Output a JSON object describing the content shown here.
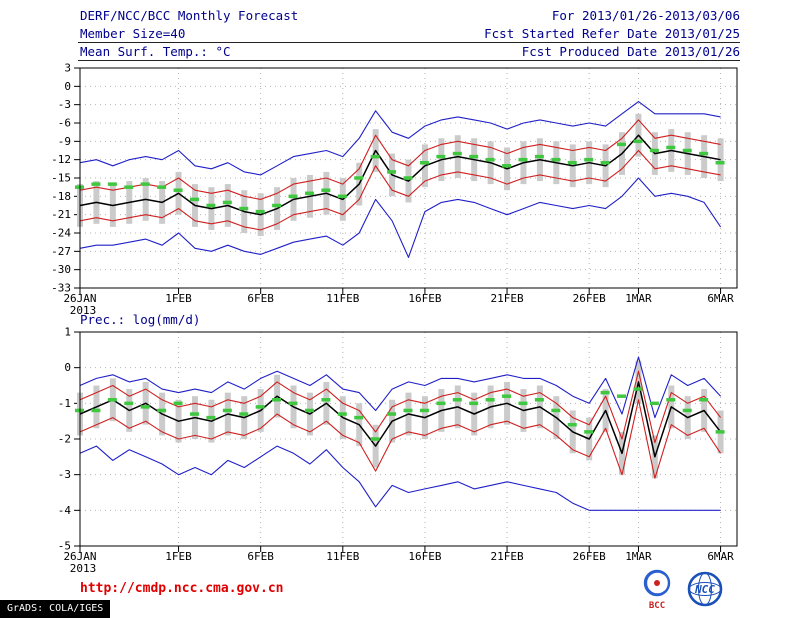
{
  "header": {
    "title": "DERF/NCC/BCC Monthly Forecast",
    "date_range": "For 2013/01/26-2013/03/06",
    "member_size": "Member Size=40",
    "refer_date": "Fcst Started Refer Date 2013/01/25",
    "produced_date": "Fcst Produced Date 2013/01/26"
  },
  "footer": {
    "url": "http://cmdp.ncc.cma.gov.cn",
    "credit": "GrADS: COLA/IGES",
    "logos": [
      {
        "name": "bcc-logo",
        "label": "BCC",
        "color": "#2b5fd0",
        "accent": "#cc2222"
      },
      {
        "name": "ncc-logo",
        "label": "NCC",
        "color": "#1a50b8"
      }
    ]
  },
  "chart_data": [
    {
      "type": "line",
      "title": "Mean Surf. Temp.: °C",
      "ylabel": "",
      "xlabel": "",
      "ylim": [
        -33,
        3
      ],
      "yticks": [
        3,
        0,
        -3,
        -6,
        -9,
        -12,
        -15,
        -18,
        -21,
        -24,
        -27,
        -30,
        -33
      ],
      "x_start_date": "2013-01-26",
      "x_count": 40,
      "grid": "dotted",
      "legend_position": "none",
      "xticks": [
        {
          "pos": 0,
          "label": "26JAN",
          "sub": "2013"
        },
        {
          "pos": 6,
          "label": "1FEB"
        },
        {
          "pos": 11,
          "label": "6FEB"
        },
        {
          "pos": 16,
          "label": "11FEB"
        },
        {
          "pos": 21,
          "label": "16FEB"
        },
        {
          "pos": 26,
          "label": "21FEB"
        },
        {
          "pos": 31,
          "label": "26FEB"
        },
        {
          "pos": 34,
          "label": "1MAR"
        },
        {
          "pos": 39,
          "label": "6MAR"
        }
      ],
      "bars": {
        "name": "ensemble-spread-bar",
        "color": "#cbcbcb",
        "hi": [
          -16,
          -15.5,
          -16,
          -15.5,
          -15,
          -15.5,
          -14,
          -16,
          -16.5,
          -16,
          -17,
          -17.5,
          -16.5,
          -15,
          -14.5,
          -14,
          -15,
          -12.5,
          -7,
          -11,
          -12,
          -9.5,
          -8.5,
          -8,
          -8.5,
          -9,
          -10,
          -9,
          -8.5,
          -9,
          -9.5,
          -9,
          -9.5,
          -7.5,
          -4.5,
          -7.5,
          -7,
          -7.5,
          -8,
          -8.5
        ],
        "lo": [
          -23,
          -22.5,
          -23,
          -22.5,
          -22,
          -22.5,
          -21,
          -23,
          -23.5,
          -23,
          -24,
          -24.5,
          -23.5,
          -22,
          -21.5,
          -21,
          -22,
          -19.5,
          -14,
          -18,
          -19,
          -16.5,
          -15.5,
          -15,
          -15.5,
          -16,
          -17,
          -16,
          -15.5,
          -16,
          -16.5,
          -16,
          -16.5,
          -14.5,
          -11.5,
          -14.5,
          -14,
          -14.5,
          -15,
          -15.5
        ]
      },
      "series": [
        {
          "name": "ensemble-max",
          "color": "#2020c8",
          "values": [
            -12.5,
            -12,
            -13,
            -12,
            -11.5,
            -12,
            -10.5,
            -13,
            -13.5,
            -12.5,
            -14,
            -14.5,
            -13,
            -11.5,
            -11,
            -10.5,
            -11.5,
            -8.5,
            -4,
            -7.5,
            -8.5,
            -6.5,
            -5.5,
            -5,
            -5.5,
            -6,
            -7,
            -6,
            -5.5,
            -6,
            -6.5,
            -6,
            -6.5,
            -4.5,
            -2.5,
            -4.5,
            -4.5,
            -4.5,
            -4.5,
            -5
          ]
        },
        {
          "name": "upper-quartile",
          "color": "#d02020",
          "values": [
            -17,
            -16.5,
            -17,
            -16.5,
            -16,
            -16.5,
            -15,
            -17,
            -17.5,
            -17,
            -18,
            -18.5,
            -17.5,
            -16,
            -15.5,
            -15,
            -16,
            -13.5,
            -8,
            -12,
            -13,
            -10.5,
            -9.5,
            -9,
            -9.5,
            -10,
            -11,
            -10,
            -9.5,
            -10,
            -10.5,
            -10,
            -10.5,
            -8.5,
            -5.5,
            -8.5,
            -8,
            -8.5,
            -9,
            -9.5
          ]
        },
        {
          "name": "ensemble-mean",
          "color": "#000000",
          "values": [
            -19.5,
            -19,
            -19.5,
            -19,
            -18.5,
            -19,
            -17.5,
            -19.5,
            -20,
            -19.5,
            -20.5,
            -21,
            -20,
            -18.5,
            -18,
            -17.5,
            -18.5,
            -16,
            -10.5,
            -14.5,
            -15.5,
            -13,
            -12,
            -11.5,
            -12,
            -12.5,
            -13.5,
            -12.5,
            -12,
            -12.5,
            -13,
            -12.5,
            -13,
            -11,
            -8,
            -11,
            -10.5,
            -11,
            -11.5,
            -12
          ]
        },
        {
          "name": "lower-quartile",
          "color": "#d02020",
          "values": [
            -22,
            -21.5,
            -22,
            -21.5,
            -21,
            -21.5,
            -20,
            -22,
            -22.5,
            -22,
            -23,
            -23.5,
            -22.5,
            -21,
            -20.5,
            -20,
            -21,
            -18.5,
            -13,
            -17,
            -18,
            -15.5,
            -14.5,
            -14,
            -14.5,
            -15,
            -16,
            -15,
            -14.5,
            -15,
            -15.5,
            -15,
            -15.5,
            -13.5,
            -10.5,
            -13.5,
            -13,
            -13.5,
            -14,
            -14.5
          ]
        },
        {
          "name": "ensemble-min",
          "color": "#2020c8",
          "values": [
            -26.5,
            -26,
            -26,
            -25.5,
            -25,
            -26,
            -24,
            -26.5,
            -27,
            -26,
            -27,
            -27.5,
            -26.5,
            -25.5,
            -25,
            -24.5,
            -26,
            -24,
            -18.5,
            -22,
            -28,
            -20.5,
            -19,
            -18.5,
            -19,
            -20,
            -21,
            -20,
            -19,
            -19.5,
            -20,
            -19.5,
            -20,
            -18,
            -15,
            -18,
            -17.5,
            -18,
            -19,
            -23
          ]
        }
      ],
      "dashes": {
        "name": "climatology-dashes",
        "color": "#3fc83f",
        "values": [
          -16.5,
          -16,
          -16,
          -16.5,
          -16,
          -16.5,
          -17,
          -18.5,
          -19.5,
          -19,
          -20,
          -20.5,
          -19.5,
          -18,
          -17.5,
          -17,
          -18,
          -15,
          -11.5,
          -14,
          -15,
          -12.5,
          -11.5,
          -11,
          -11.5,
          -12,
          -13,
          -12,
          -11.5,
          -12,
          -12.5,
          -12,
          -12.5,
          -9.5,
          -9,
          -10.5,
          -10,
          -10.5,
          -11,
          -12.5
        ]
      }
    },
    {
      "type": "line",
      "title": "Prec.: log(mm/d)",
      "ylabel": "",
      "xlabel": "",
      "ylim": [
        -5,
        1
      ],
      "yticks": [
        1,
        0,
        -1,
        -2,
        -3,
        -4,
        -5
      ],
      "x_start_date": "2013-01-26",
      "x_count": 40,
      "grid": "dotted",
      "legend_position": "none",
      "xticks": [
        {
          "pos": 0,
          "label": "26JAN",
          "sub": "2013"
        },
        {
          "pos": 6,
          "label": "1FEB"
        },
        {
          "pos": 11,
          "label": "6FEB"
        },
        {
          "pos": 16,
          "label": "11FEB"
        },
        {
          "pos": 21,
          "label": "16FEB"
        },
        {
          "pos": 26,
          "label": "21FEB"
        },
        {
          "pos": 31,
          "label": "26FEB"
        },
        {
          "pos": 34,
          "label": "1MAR"
        },
        {
          "pos": 39,
          "label": "6MAR"
        }
      ],
      "bars": {
        "name": "ensemble-spread-bar",
        "color": "#cbcbcb",
        "hi": [
          -0.7,
          -0.5,
          -0.3,
          -0.6,
          -0.4,
          -0.7,
          -0.9,
          -0.8,
          -0.9,
          -0.7,
          -0.8,
          -0.6,
          -0.2,
          -0.5,
          -0.7,
          -0.4,
          -0.8,
          -1.0,
          -1.6,
          -0.9,
          -0.7,
          -0.8,
          -0.6,
          -0.5,
          -0.7,
          -0.5,
          -0.4,
          -0.6,
          -0.5,
          -0.8,
          -1.2,
          -1.4,
          -0.6,
          -1.8,
          0.2,
          -1.9,
          -0.5,
          -0.8,
          -0.6,
          -1.2
        ],
        "lo": [
          -1.9,
          -1.7,
          -1.5,
          -1.8,
          -1.6,
          -1.9,
          -2.1,
          -2.0,
          -2.1,
          -1.9,
          -2.0,
          -1.8,
          -1.4,
          -1.7,
          -1.9,
          -1.6,
          -2.0,
          -2.2,
          -2.8,
          -2.1,
          -1.9,
          -2.0,
          -1.8,
          -1.7,
          -1.9,
          -1.7,
          -1.6,
          -1.8,
          -1.7,
          -2.0,
          -2.4,
          -2.6,
          -1.8,
          -3.0,
          -1.0,
          -3.1,
          -1.7,
          -2.0,
          -1.8,
          -2.4
        ]
      },
      "series": [
        {
          "name": "ensemble-max",
          "color": "#2020c8",
          "values": [
            -0.5,
            -0.3,
            -0.2,
            -0.4,
            -0.3,
            -0.6,
            -0.7,
            -0.6,
            -0.7,
            -0.4,
            -0.6,
            -0.3,
            -0.1,
            -0.3,
            -0.5,
            -0.2,
            -0.6,
            -0.7,
            -1.2,
            -0.6,
            -0.4,
            -0.5,
            -0.3,
            -0.3,
            -0.4,
            -0.3,
            -0.2,
            -0.3,
            -0.3,
            -0.5,
            -0.8,
            -1.0,
            -0.3,
            -1.3,
            0.3,
            -1.4,
            -0.2,
            -0.5,
            -0.3,
            -0.8
          ]
        },
        {
          "name": "upper-quartile",
          "color": "#d02020",
          "values": [
            -0.9,
            -0.7,
            -0.5,
            -0.8,
            -0.6,
            -0.9,
            -1.1,
            -1.0,
            -1.1,
            -0.9,
            -1.0,
            -0.8,
            -0.4,
            -0.7,
            -0.9,
            -0.6,
            -1.0,
            -1.2,
            -1.8,
            -1.1,
            -0.9,
            -1.0,
            -0.8,
            -0.7,
            -0.9,
            -0.7,
            -0.6,
            -0.8,
            -0.7,
            -1.0,
            -1.4,
            -1.6,
            -0.8,
            -2.0,
            -0.1,
            -2.1,
            -0.7,
            -1.0,
            -0.8,
            -1.4
          ]
        },
        {
          "name": "ensemble-mean",
          "color": "#000000",
          "values": [
            -1.3,
            -1.1,
            -0.9,
            -1.2,
            -1.0,
            -1.3,
            -1.5,
            -1.4,
            -1.5,
            -1.3,
            -1.4,
            -1.2,
            -0.8,
            -1.1,
            -1.3,
            -1.0,
            -1.4,
            -1.6,
            -2.2,
            -1.5,
            -1.3,
            -1.4,
            -1.2,
            -1.1,
            -1.3,
            -1.1,
            -1.0,
            -1.2,
            -1.1,
            -1.4,
            -1.8,
            -2.0,
            -1.2,
            -2.4,
            -0.4,
            -2.5,
            -1.1,
            -1.4,
            -1.2,
            -1.8
          ]
        },
        {
          "name": "lower-quartile",
          "color": "#d02020",
          "values": [
            -1.8,
            -1.6,
            -1.4,
            -1.7,
            -1.5,
            -1.8,
            -2.0,
            -1.9,
            -2.0,
            -1.8,
            -1.9,
            -1.7,
            -1.3,
            -1.6,
            -1.8,
            -1.5,
            -1.9,
            -2.1,
            -2.9,
            -2.0,
            -1.8,
            -1.9,
            -1.7,
            -1.6,
            -1.8,
            -1.6,
            -1.5,
            -1.7,
            -1.6,
            -1.9,
            -2.3,
            -2.5,
            -1.7,
            -3.0,
            -0.9,
            -3.1,
            -1.6,
            -1.9,
            -1.7,
            -2.4
          ]
        },
        {
          "name": "ensemble-min",
          "color": "#2020c8",
          "values": [
            -2.4,
            -2.2,
            -2.6,
            -2.3,
            -2.5,
            -2.7,
            -3.0,
            -2.8,
            -3.0,
            -2.6,
            -2.8,
            -2.5,
            -2.2,
            -2.4,
            -2.7,
            -2.3,
            -2.8,
            -3.2,
            -3.9,
            -3.3,
            -3.5,
            -3.4,
            -3.3,
            -3.2,
            -3.4,
            -3.3,
            -3.2,
            -3.3,
            -3.4,
            -3.5,
            -3.8,
            -4.0,
            -4.0,
            -4.0,
            -4.0,
            -4.0,
            -4.0,
            -4.0,
            -4.0,
            -4.0
          ]
        }
      ],
      "dashes": {
        "name": "climatology-dashes",
        "color": "#3fc83f",
        "values": [
          -1.2,
          -1.2,
          -0.9,
          -1.0,
          -1.1,
          -1.2,
          -1.0,
          -1.3,
          -1.4,
          -1.2,
          -1.3,
          -1.1,
          -0.9,
          -1.0,
          -1.2,
          -0.9,
          -1.3,
          -1.4,
          -2.0,
          -1.3,
          -1.2,
          -1.2,
          -1.0,
          -0.9,
          -1.0,
          -0.9,
          -0.8,
          -1.0,
          -0.9,
          -1.2,
          -1.6,
          -1.8,
          -0.7,
          -0.8,
          -0.6,
          -1.0,
          -0.9,
          -1.2,
          -0.9,
          -1.8
        ]
      }
    }
  ]
}
